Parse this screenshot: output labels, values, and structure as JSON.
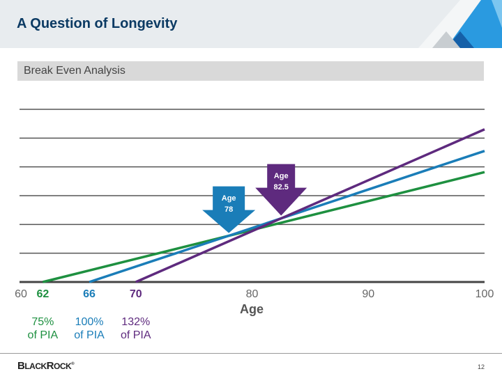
{
  "slide": {
    "title": "A Question of Longevity",
    "subtitle": "Break Even Analysis",
    "page_number": "12",
    "logo": "BLACKROCK"
  },
  "chart_data": {
    "type": "line",
    "xlabel": "Age",
    "xlim": [
      60,
      100
    ],
    "ylim": [
      0,
      44.8
    ],
    "grid": true,
    "x_ticks": [
      {
        "label": "60",
        "color": "#666666"
      },
      {
        "label": "62",
        "color": "#1e9040"
      },
      {
        "label": "66",
        "color": "#1a7db8"
      },
      {
        "label": "70",
        "color": "#5e2a7e"
      },
      {
        "label": "80",
        "color": "#666666"
      },
      {
        "label": "90",
        "color": "#666666"
      },
      {
        "label": "100",
        "color": "#666666"
      }
    ],
    "series": [
      {
        "start_age": "62",
        "benefit": "75%",
        "benefit_label": "of PIA",
        "color": "#1e9040",
        "x": [
          62,
          100
        ],
        "y": [
          0,
          28.5
        ]
      },
      {
        "start_age": "66",
        "benefit": "100%",
        "benefit_label": "of PIA",
        "color": "#1a7db8",
        "x": [
          66,
          100
        ],
        "y": [
          0,
          34
        ]
      },
      {
        "start_age": "70",
        "benefit": "132%",
        "benefit_label": "of PIA",
        "color": "#5e2a7e",
        "x": [
          70,
          100
        ],
        "y": [
          0,
          39.6
        ]
      }
    ],
    "annotations": [
      {
        "line1": "Age",
        "line2": "78",
        "x": 78,
        "color": "#1a7db8"
      },
      {
        "line1": "Age",
        "line2": "82.5",
        "x": 82.5,
        "color": "#5e2a7e"
      }
    ]
  }
}
